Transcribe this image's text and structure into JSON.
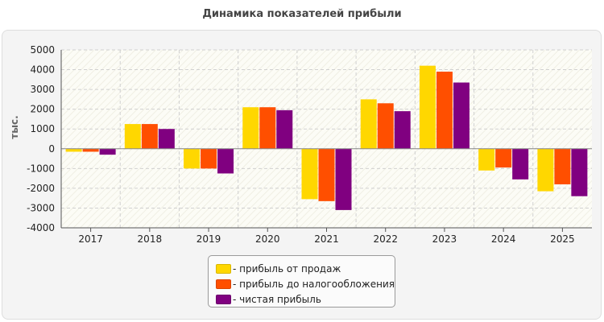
{
  "chart_data": {
    "type": "bar",
    "title": "Динамика показателей прибыли",
    "xlabel": "",
    "ylabel": "тыс.",
    "ylim": [
      -4000,
      5000
    ],
    "yticks": [
      "5000",
      "4000",
      "3000",
      "2000",
      "1000",
      "0",
      "-1000",
      "-2000",
      "-3000",
      "-4000"
    ],
    "categories": [
      "2017",
      "2018",
      "2019",
      "2020",
      "2021",
      "2022",
      "2023",
      "2024",
      "2025"
    ],
    "series": [
      {
        "name": "- прибыль от продаж",
        "color": "#ffd700",
        "values": [
          -150,
          1250,
          -1000,
          2100,
          -2550,
          2500,
          4200,
          -1100,
          -2150
        ]
      },
      {
        "name": "- прибыль до налогообложения",
        "color": "#ff4f00",
        "values": [
          -150,
          1250,
          -1000,
          2100,
          -2650,
          2300,
          3900,
          -950,
          -1800
        ]
      },
      {
        "name": "- чистая прибыль",
        "color": "#800080",
        "values": [
          -300,
          1000,
          -1250,
          1950,
          -3100,
          1900,
          3350,
          -1550,
          -2400
        ]
      }
    ],
    "grid": true,
    "legend_position": "bottom-center"
  }
}
